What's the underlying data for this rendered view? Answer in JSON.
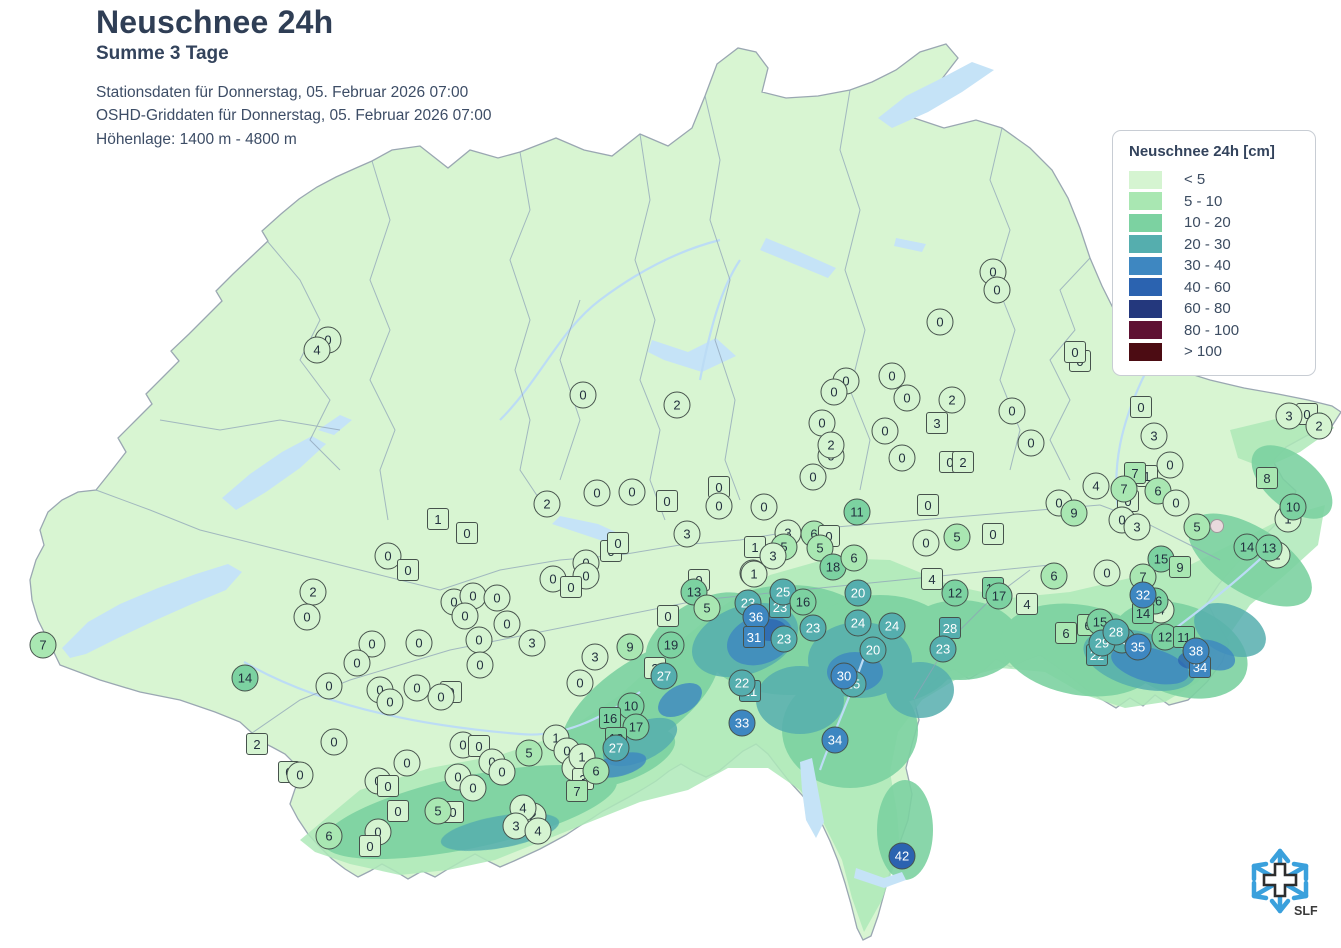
{
  "header": {
    "title": "Neuschnee 24h",
    "subtitle": "Summe 3 Tage",
    "info_line1": "Stationsdaten für Donnerstag, 05. Februar 2026 07:00",
    "info_line2": "OSHD-Griddaten für Donnerstag, 05. Februar 2026 07:00",
    "info_line3": "Höhenlage: 1400 m - 4800 m"
  },
  "legend": {
    "title": "Neuschnee 24h [cm]",
    "items": [
      {
        "label": "< 5",
        "color": "#d5f4d1"
      },
      {
        "label": "5 - 10",
        "color": "#a9e7b2"
      },
      {
        "label": "10 - 20",
        "color": "#7cd2a1"
      },
      {
        "label": "20 - 30",
        "color": "#55aeae"
      },
      {
        "label": "30 - 40",
        "color": "#3e87c1"
      },
      {
        "label": "40 - 60",
        "color": "#2b63b0"
      },
      {
        "label": "60 - 80",
        "color": "#24387d"
      },
      {
        "label": "80 - 100",
        "color": "#5e1133"
      },
      {
        "label": "> 100",
        "color": "#4c0c13"
      }
    ]
  },
  "logo": {
    "text": "SLF"
  },
  "stations": {
    "fields": [
      "value",
      "x",
      "y",
      "shape"
    ],
    "rows": [
      [
        "0",
        328,
        340,
        "c"
      ],
      [
        "4",
        317,
        350,
        "c"
      ],
      [
        "0",
        583,
        395,
        "c"
      ],
      [
        "2",
        677,
        405,
        "c"
      ],
      [
        "0",
        846,
        381,
        "c"
      ],
      [
        "0",
        834,
        392,
        "c"
      ],
      [
        "0",
        892,
        376,
        "c"
      ],
      [
        "0",
        907,
        398,
        "c"
      ],
      [
        "0",
        822,
        423,
        "c"
      ],
      [
        "0",
        885,
        431,
        "c"
      ],
      [
        "0",
        831,
        456,
        "c"
      ],
      [
        "2",
        831,
        445,
        "c"
      ],
      [
        "0",
        902,
        458,
        "c"
      ],
      [
        "0",
        813,
        477,
        "c"
      ],
      [
        "0",
        993,
        272,
        "c"
      ],
      [
        "0",
        997,
        290,
        "c"
      ],
      [
        "0",
        940,
        322,
        "c"
      ],
      [
        "0",
        1080,
        361,
        "q"
      ],
      [
        "0",
        1075,
        352,
        "q"
      ],
      [
        "2",
        952,
        400,
        "c"
      ],
      [
        "3",
        937,
        423,
        "q"
      ],
      [
        "0",
        1012,
        411,
        "c"
      ],
      [
        "0",
        1031,
        443,
        "c"
      ],
      [
        "0",
        1141,
        407,
        "q"
      ],
      [
        "3",
        1154,
        436,
        "c"
      ],
      [
        "0",
        1307,
        414,
        "q"
      ],
      [
        "3",
        1289,
        416,
        "c"
      ],
      [
        "2",
        1319,
        426,
        "c"
      ],
      [
        "0",
        950,
        462,
        "q"
      ],
      [
        "2",
        963,
        462,
        "q"
      ],
      [
        "0",
        632,
        492,
        "c"
      ],
      [
        "0",
        667,
        501,
        "q"
      ],
      [
        "0",
        719,
        487,
        "q"
      ],
      [
        "0",
        719,
        506,
        "c"
      ],
      [
        "0",
        764,
        507,
        "c"
      ],
      [
        "11",
        857,
        512,
        "c"
      ],
      [
        "0",
        928,
        505,
        "q"
      ],
      [
        "2",
        547,
        504,
        "c"
      ],
      [
        "0",
        597,
        493,
        "c"
      ],
      [
        "1",
        438,
        519,
        "q"
      ],
      [
        "0",
        467,
        533,
        "q"
      ],
      [
        "0",
        388,
        556,
        "c"
      ],
      [
        "0",
        408,
        570,
        "q"
      ],
      [
        "3",
        788,
        533,
        "c"
      ],
      [
        "5",
        784,
        547,
        "c"
      ],
      [
        "1",
        755,
        547,
        "q"
      ],
      [
        "3",
        773,
        556,
        "c"
      ],
      [
        "1",
        753,
        573,
        "c"
      ],
      [
        "6",
        814,
        534,
        "c"
      ],
      [
        "0",
        829,
        536,
        "q"
      ],
      [
        "5",
        820,
        548,
        "c"
      ],
      [
        "18",
        833,
        567,
        "c"
      ],
      [
        "6",
        854,
        558,
        "c"
      ],
      [
        "5",
        957,
        537,
        "c"
      ],
      [
        "0",
        926,
        543,
        "c"
      ],
      [
        "0",
        993,
        534,
        "q"
      ],
      [
        "3",
        687,
        534,
        "c"
      ],
      [
        "0",
        611,
        551,
        "q"
      ],
      [
        "0",
        618,
        543,
        "q"
      ],
      [
        "0",
        586,
        563,
        "c"
      ],
      [
        "0",
        586,
        576,
        "c"
      ],
      [
        "0",
        553,
        579,
        "c"
      ],
      [
        "0",
        571,
        587,
        "q"
      ],
      [
        "0",
        1170,
        465,
        "c"
      ],
      [
        "1",
        1147,
        476,
        "q"
      ],
      [
        "7",
        1135,
        473,
        "q"
      ],
      [
        "0",
        1128,
        501,
        "q"
      ],
      [
        "7",
        1124,
        489,
        "c"
      ],
      [
        "6",
        1158,
        491,
        "c"
      ],
      [
        "0",
        1176,
        503,
        "c"
      ],
      [
        "4",
        1096,
        486,
        "c"
      ],
      [
        "0",
        1059,
        503,
        "c"
      ],
      [
        "9",
        1074,
        513,
        "c"
      ],
      [
        "0",
        1122,
        520,
        "c"
      ],
      [
        "3",
        1137,
        527,
        "c"
      ],
      [
        "5",
        1197,
        527,
        "c"
      ],
      [
        "",
        1217,
        526,
        "d"
      ],
      [
        "8",
        1267,
        478,
        "q"
      ],
      [
        "1",
        1288,
        519,
        "c"
      ],
      [
        "10",
        1293,
        507,
        "c"
      ],
      [
        "2",
        1277,
        555,
        "c"
      ],
      [
        "14",
        1247,
        547,
        "c"
      ],
      [
        "13",
        1269,
        548,
        "c"
      ],
      [
        "0",
        1107,
        573,
        "c"
      ],
      [
        "6",
        1054,
        576,
        "c"
      ],
      [
        "15",
        1161,
        559,
        "c"
      ],
      [
        "9",
        1180,
        567,
        "q"
      ],
      [
        "7",
        1143,
        577,
        "c"
      ],
      [
        "4",
        1161,
        610,
        "c"
      ],
      [
        "16",
        1155,
        601,
        "c"
      ],
      [
        "14",
        1143,
        613,
        "q"
      ],
      [
        "32",
        1143,
        595,
        "c"
      ],
      [
        "6",
        1066,
        633,
        "q"
      ],
      [
        "6",
        1088,
        625,
        "q"
      ],
      [
        "15",
        1100,
        622,
        "c"
      ],
      [
        "22",
        1097,
        655,
        "q"
      ],
      [
        "23",
        1122,
        640,
        "c"
      ],
      [
        "29",
        1102,
        643,
        "c"
      ],
      [
        "35",
        1138,
        647,
        "c"
      ],
      [
        "28",
        1116,
        632,
        "c"
      ],
      [
        "12",
        1165,
        637,
        "c"
      ],
      [
        "11",
        1184,
        637,
        "q"
      ],
      [
        "34",
        1200,
        667,
        "q"
      ],
      [
        "38",
        1196,
        651,
        "c"
      ],
      [
        "0",
        699,
        580,
        "q"
      ],
      [
        "13",
        694,
        592,
        "c"
      ],
      [
        "5",
        707,
        608,
        "c"
      ],
      [
        "0",
        668,
        616,
        "q"
      ],
      [
        "1",
        754,
        574,
        "c"
      ],
      [
        "23",
        780,
        607,
        "q"
      ],
      [
        "25",
        783,
        592,
        "c"
      ],
      [
        "23",
        748,
        603,
        "c"
      ],
      [
        "16",
        803,
        602,
        "c"
      ],
      [
        "36",
        756,
        617,
        "c"
      ],
      [
        "31",
        754,
        637,
        "q"
      ],
      [
        "23",
        784,
        639,
        "c"
      ],
      [
        "23",
        813,
        628,
        "c"
      ],
      [
        "20",
        858,
        593,
        "c"
      ],
      [
        "24",
        858,
        623,
        "c"
      ],
      [
        "24",
        892,
        626,
        "c"
      ],
      [
        "20",
        873,
        650,
        "c"
      ],
      [
        "4",
        932,
        579,
        "q"
      ],
      [
        "12",
        955,
        593,
        "c"
      ],
      [
        "16",
        993,
        588,
        "q"
      ],
      [
        "17",
        999,
        596,
        "c"
      ],
      [
        "4",
        1027,
        604,
        "q"
      ],
      [
        "28",
        950,
        628,
        "q"
      ],
      [
        "23",
        943,
        649,
        "c"
      ],
      [
        "21",
        750,
        691,
        "q"
      ],
      [
        "22",
        742,
        683,
        "c"
      ],
      [
        "33",
        742,
        723,
        "c"
      ],
      [
        "25",
        853,
        684,
        "c"
      ],
      [
        "30",
        844,
        676,
        "c"
      ],
      [
        "34",
        835,
        740,
        "c"
      ],
      [
        "42",
        902,
        856,
        "c"
      ],
      [
        "3",
        532,
        643,
        "c"
      ],
      [
        "3",
        595,
        657,
        "c"
      ],
      [
        "9",
        630,
        647,
        "c"
      ],
      [
        "19",
        671,
        645,
        "c"
      ],
      [
        "2",
        655,
        668,
        "q"
      ],
      [
        "27",
        664,
        676,
        "c"
      ],
      [
        "0",
        580,
        683,
        "c"
      ],
      [
        "10",
        631,
        706,
        "c"
      ],
      [
        "16",
        610,
        718,
        "q"
      ],
      [
        "17",
        636,
        727,
        "c"
      ],
      [
        "18",
        616,
        738,
        "q"
      ],
      [
        "27",
        616,
        748,
        "c"
      ],
      [
        "5",
        529,
        753,
        "c"
      ],
      [
        "1",
        556,
        738,
        "c"
      ],
      [
        "0",
        567,
        751,
        "c"
      ],
      [
        "2",
        575,
        768,
        "c"
      ],
      [
        "1",
        582,
        757,
        "c"
      ],
      [
        "3",
        583,
        779,
        "q"
      ],
      [
        "6",
        596,
        771,
        "c"
      ],
      [
        "7",
        577,
        791,
        "q"
      ],
      [
        "2",
        313,
        592,
        "c"
      ],
      [
        "0",
        307,
        617,
        "c"
      ],
      [
        "0",
        372,
        644,
        "c"
      ],
      [
        "0",
        357,
        663,
        "c"
      ],
      [
        "0",
        419,
        643,
        "c"
      ],
      [
        "0",
        479,
        640,
        "c"
      ],
      [
        "0",
        480,
        665,
        "c"
      ],
      [
        "0",
        454,
        602,
        "c"
      ],
      [
        "0",
        473,
        596,
        "c"
      ],
      [
        "0",
        497,
        598,
        "c"
      ],
      [
        "0",
        507,
        624,
        "c"
      ],
      [
        "0",
        465,
        616,
        "c"
      ],
      [
        "14",
        245,
        678,
        "c"
      ],
      [
        "7",
        43,
        645,
        "c"
      ],
      [
        "0",
        329,
        686,
        "c"
      ],
      [
        "0",
        380,
        690,
        "c"
      ],
      [
        "0",
        390,
        702,
        "c"
      ],
      [
        "0",
        417,
        688,
        "c"
      ],
      [
        "0",
        451,
        692,
        "q"
      ],
      [
        "0",
        441,
        697,
        "c"
      ],
      [
        "2",
        257,
        744,
        "q"
      ],
      [
        "0",
        289,
        772,
        "q"
      ],
      [
        "0",
        300,
        775,
        "c"
      ],
      [
        "0",
        334,
        742,
        "c"
      ],
      [
        "0",
        407,
        763,
        "c"
      ],
      [
        "0",
        378,
        781,
        "c"
      ],
      [
        "0",
        388,
        786,
        "q"
      ],
      [
        "0",
        463,
        745,
        "c"
      ],
      [
        "0",
        479,
        746,
        "q"
      ],
      [
        "0",
        492,
        762,
        "c"
      ],
      [
        "0",
        502,
        772,
        "c"
      ],
      [
        "0",
        458,
        777,
        "c"
      ],
      [
        "0",
        473,
        788,
        "c"
      ],
      [
        "0",
        398,
        811,
        "q"
      ],
      [
        "0",
        453,
        812,
        "q"
      ],
      [
        "5",
        438,
        811,
        "c"
      ],
      [
        "2",
        533,
        816,
        "c"
      ],
      [
        "4",
        523,
        808,
        "c"
      ],
      [
        "3",
        516,
        826,
        "c"
      ],
      [
        "4",
        538,
        831,
        "c"
      ],
      [
        "0",
        378,
        832,
        "c"
      ],
      [
        "0",
        370,
        846,
        "q"
      ],
      [
        "6",
        329,
        836,
        "c"
      ]
    ]
  }
}
